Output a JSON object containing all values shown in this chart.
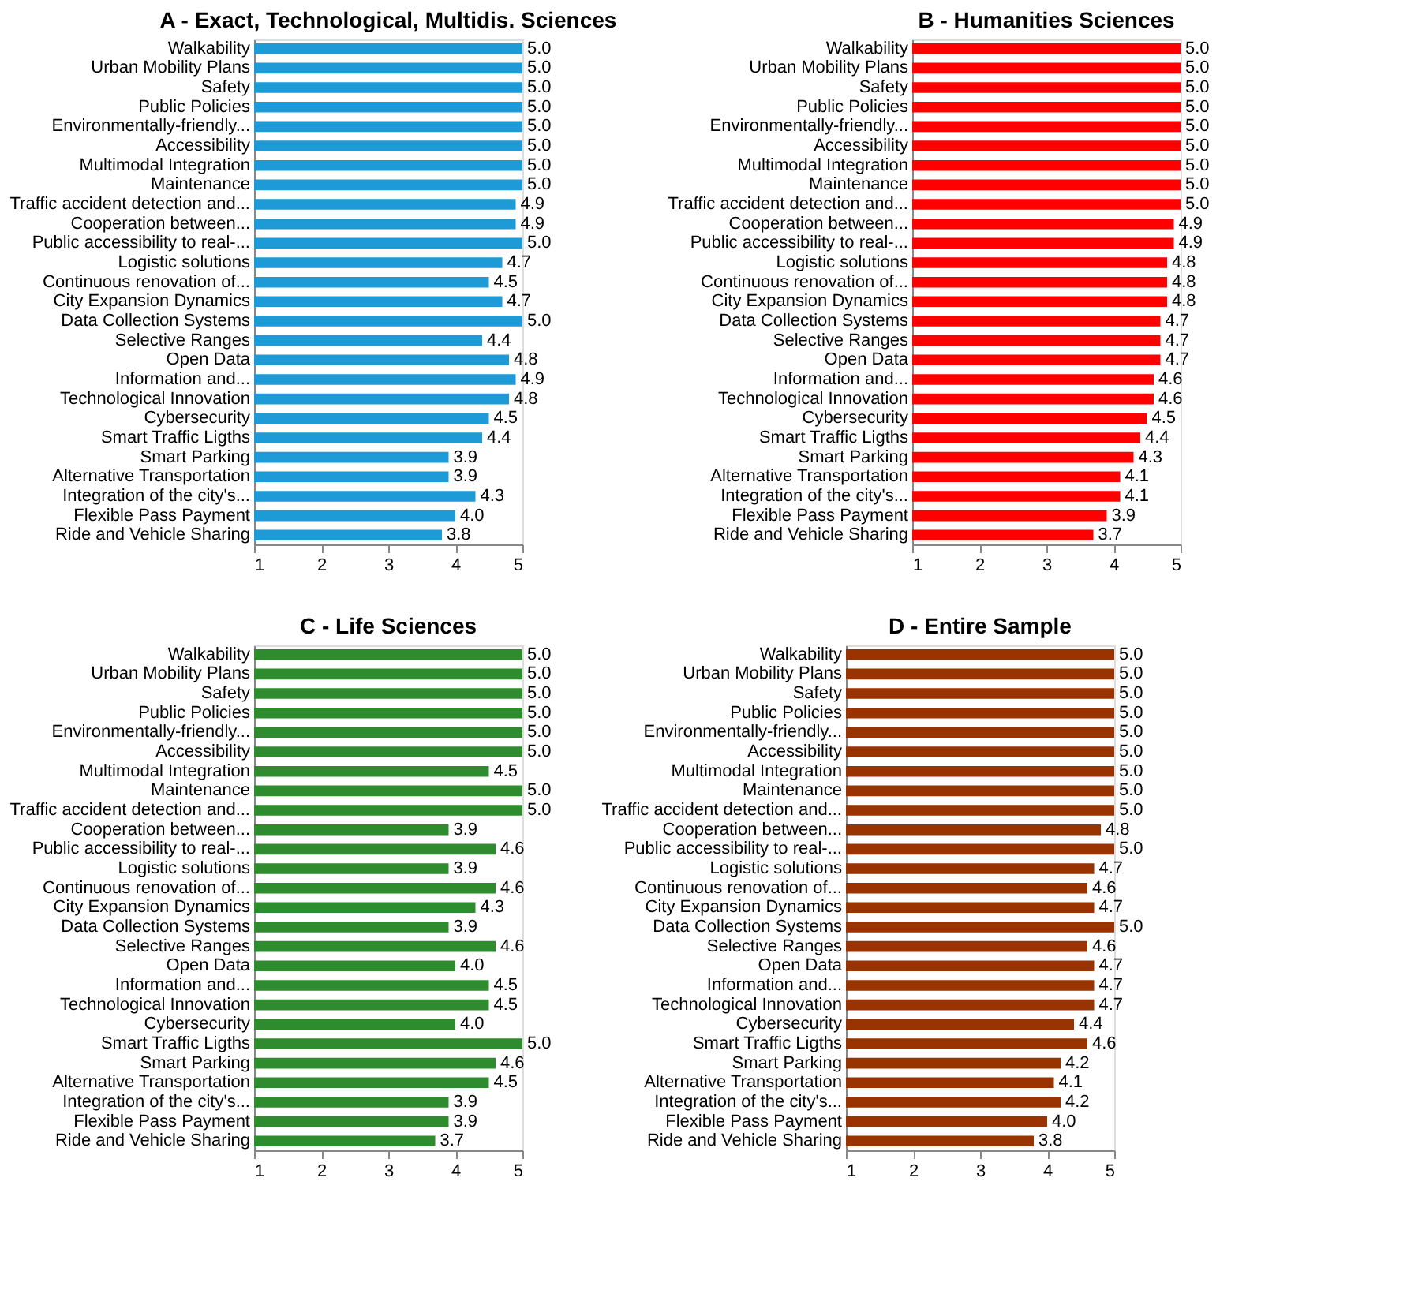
{
  "chart_data": [
    {
      "type": "bar",
      "orientation": "horizontal",
      "title": "A - Exact, Technological, Multidis. Sciences",
      "categories": [
        "Walkability",
        "Urban Mobility Plans",
        "Safety",
        "Public Policies",
        "Environmentally-friendly...",
        "Accessibility",
        "Multimodal Integration",
        "Maintenance",
        "Traffic accident detection and...",
        "Cooperation between...",
        "Public accessibility to real-...",
        "Logistic solutions",
        "Continuous renovation of...",
        "City Expansion Dynamics",
        "Data Collection Systems",
        "Selective Ranges",
        "Open Data",
        "Information and...",
        "Technological Innovation",
        "Cybersecurity",
        "Smart Traffic Ligths",
        "Smart Parking",
        "Alternative Transportation",
        "Integration of the city's...",
        "Flexible Pass Payment",
        "Ride and Vehicle Sharing"
      ],
      "values": [
        5.0,
        5.0,
        5.0,
        5.0,
        5.0,
        5.0,
        5.0,
        5.0,
        4.9,
        4.9,
        5.0,
        4.7,
        4.5,
        4.7,
        5.0,
        4.4,
        4.8,
        4.9,
        4.8,
        4.5,
        4.4,
        3.9,
        3.9,
        4.3,
        4.0,
        3.8
      ],
      "value_labels": [
        "5.0",
        "5.0",
        "5.0",
        "5.0",
        "5.0",
        "5.0",
        "5.0",
        "5.0",
        "4.9",
        "4.9",
        "5.0",
        "4.7",
        "4.5",
        "4.7",
        "5.0",
        "4.4",
        "4.8",
        "4.9",
        "4.8",
        "4.5",
        "4.4",
        "3.9",
        "3.9",
        "4.3",
        "4.0",
        "3.8"
      ],
      "color": "#1e9ad6",
      "xlim": [
        1,
        5
      ],
      "xticks": [
        1,
        2,
        3,
        4,
        5
      ],
      "grid": false
    },
    {
      "type": "bar",
      "orientation": "horizontal",
      "title": "B - Humanities Sciences",
      "categories": [
        "Walkability",
        "Urban Mobility Plans",
        "Safety",
        "Public Policies",
        "Environmentally-friendly...",
        "Accessibility",
        "Multimodal Integration",
        "Maintenance",
        "Traffic accident detection and...",
        "Cooperation between...",
        "Public accessibility to real-...",
        "Logistic solutions",
        "Continuous renovation of...",
        "City Expansion Dynamics",
        "Data Collection Systems",
        "Selective Ranges",
        "Open Data",
        "Information and...",
        "Technological Innovation",
        "Cybersecurity",
        "Smart Traffic Ligths",
        "Smart Parking",
        "Alternative Transportation",
        "Integration of the city's...",
        "Flexible Pass Payment",
        "Ride and Vehicle Sharing"
      ],
      "values": [
        5.0,
        5.0,
        5.0,
        5.0,
        5.0,
        5.0,
        5.0,
        5.0,
        5.0,
        4.9,
        4.9,
        4.8,
        4.8,
        4.8,
        4.7,
        4.7,
        4.7,
        4.6,
        4.6,
        4.5,
        4.4,
        4.3,
        4.1,
        4.1,
        3.9,
        3.7
      ],
      "value_labels": [
        "5.0",
        "5.0",
        "5.0",
        "5.0",
        "5.0",
        "5.0",
        "5.0",
        "5.0",
        "5.0",
        "4.9",
        "4.9",
        "4.8",
        "4.8",
        "4.8",
        "4.7",
        "4.7",
        "4.7",
        "4.6",
        "4.6",
        "4.5",
        "4.4",
        "4.3",
        "4.1",
        "4.1",
        "3.9",
        "3.7"
      ],
      "color": "#ff0000",
      "xlim": [
        1,
        5
      ],
      "xticks": [
        1,
        2,
        3,
        4,
        5
      ],
      "grid": false
    },
    {
      "type": "bar",
      "orientation": "horizontal",
      "title": "C - Life Sciences",
      "categories": [
        "Walkability",
        "Urban Mobility Plans",
        "Safety",
        "Public Policies",
        "Environmentally-friendly...",
        "Accessibility",
        "Multimodal Integration",
        "Maintenance",
        "Traffic accident detection and...",
        "Cooperation between...",
        "Public accessibility to real-...",
        "Logistic solutions",
        "Continuous renovation of...",
        "City Expansion Dynamics",
        "Data Collection Systems",
        "Selective Ranges",
        "Open Data",
        "Information and...",
        "Technological Innovation",
        "Cybersecurity",
        "Smart Traffic Ligths",
        "Smart Parking",
        "Alternative Transportation",
        "Integration of the city's...",
        "Flexible Pass Payment",
        "Ride and Vehicle Sharing"
      ],
      "values": [
        5.0,
        5.0,
        5.0,
        5.0,
        5.0,
        5.0,
        4.5,
        5.0,
        5.0,
        3.9,
        4.6,
        3.9,
        4.6,
        4.3,
        3.9,
        4.6,
        4.0,
        4.5,
        4.5,
        4.0,
        5.0,
        4.6,
        4.5,
        3.9,
        3.9,
        3.7
      ],
      "value_labels": [
        "5.0",
        "5.0",
        "5.0",
        "5.0",
        "5.0",
        "5.0",
        "4.5",
        "5.0",
        "5.0",
        "3.9",
        "4.6",
        "3.9",
        "4.6",
        "4.3",
        "3.9",
        "4.6",
        "4.0",
        "4.5",
        "4.5",
        "4.0",
        "5.0",
        "4.6",
        "4.5",
        "3.9",
        "3.9",
        "3.7"
      ],
      "color": "#2e8b2e",
      "xlim": [
        1,
        5
      ],
      "xticks": [
        1,
        2,
        3,
        4,
        5
      ],
      "grid": false
    },
    {
      "type": "bar",
      "orientation": "horizontal",
      "title": "D - Entire Sample",
      "categories": [
        "Walkability",
        "Urban Mobility Plans",
        "Safety",
        "Public Policies",
        "Environmentally-friendly...",
        "Accessibility",
        "Multimodal Integration",
        "Maintenance",
        "Traffic accident detection and...",
        "Cooperation between...",
        "Public accessibility to real-...",
        "Logistic solutions",
        "Continuous renovation of...",
        "City Expansion Dynamics",
        "Data Collection Systems",
        "Selective Ranges",
        "Open Data",
        "Information and...",
        "Technological Innovation",
        "Cybersecurity",
        "Smart Traffic Ligths",
        "Smart Parking",
        "Alternative Transportation",
        "Integration of the city's...",
        "Flexible Pass Payment",
        "Ride and Vehicle Sharing"
      ],
      "values": [
        5.0,
        5.0,
        5.0,
        5.0,
        5.0,
        5.0,
        5.0,
        5.0,
        5.0,
        4.8,
        5.0,
        4.7,
        4.6,
        4.7,
        5.0,
        4.6,
        4.7,
        4.7,
        4.7,
        4.4,
        4.6,
        4.2,
        4.1,
        4.2,
        4.0,
        3.8
      ],
      "value_labels": [
        "5.0",
        "5.0",
        "5.0",
        "5.0",
        "5.0",
        "5.0",
        "5.0",
        "5.0",
        "5.0",
        "4.8",
        "5.0",
        "4.7",
        "4.6",
        "4.7",
        "5.0",
        "4.6",
        "4.7",
        "4.7",
        "4.7",
        "4.4",
        "4.6",
        "4.2",
        "4.1",
        "4.2",
        "4.0",
        "3.8"
      ],
      "color": "#993300",
      "xlim": [
        1,
        5
      ],
      "xticks": [
        1,
        2,
        3,
        4,
        5
      ],
      "grid": false
    }
  ]
}
